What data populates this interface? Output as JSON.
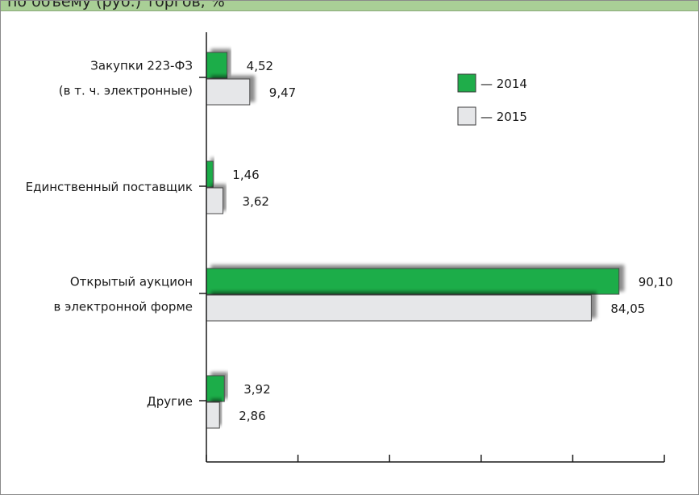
{
  "title": "по объему (руб.) торгов, %",
  "chart_data": {
    "type": "bar",
    "orientation": "horizontal",
    "categories": [
      [
        "Закупки 223-ФЗ",
        "(в т. ч. электронные)"
      ],
      [
        "Единственный поставщик"
      ],
      [
        "Открытый аукцион",
        "в электронной форме"
      ],
      [
        "Другие"
      ]
    ],
    "series": [
      {
        "name": "— 2014",
        "color": "#1fad4a",
        "values": [
          4.52,
          1.46,
          90.1,
          3.92
        ],
        "labels": [
          "4,52",
          "1,46",
          "90,10",
          "3,92"
        ]
      },
      {
        "name": "— 2015",
        "color": "#e6e7e9",
        "values": [
          9.47,
          3.62,
          84.05,
          2.86
        ],
        "labels": [
          "9,47",
          "3,62",
          "84,05",
          "2,86"
        ]
      }
    ],
    "xlim": [
      0,
      100
    ],
    "x_ticks": [
      0,
      20,
      40,
      60,
      80,
      100
    ],
    "grid": false,
    "legend_position": "top-right"
  }
}
